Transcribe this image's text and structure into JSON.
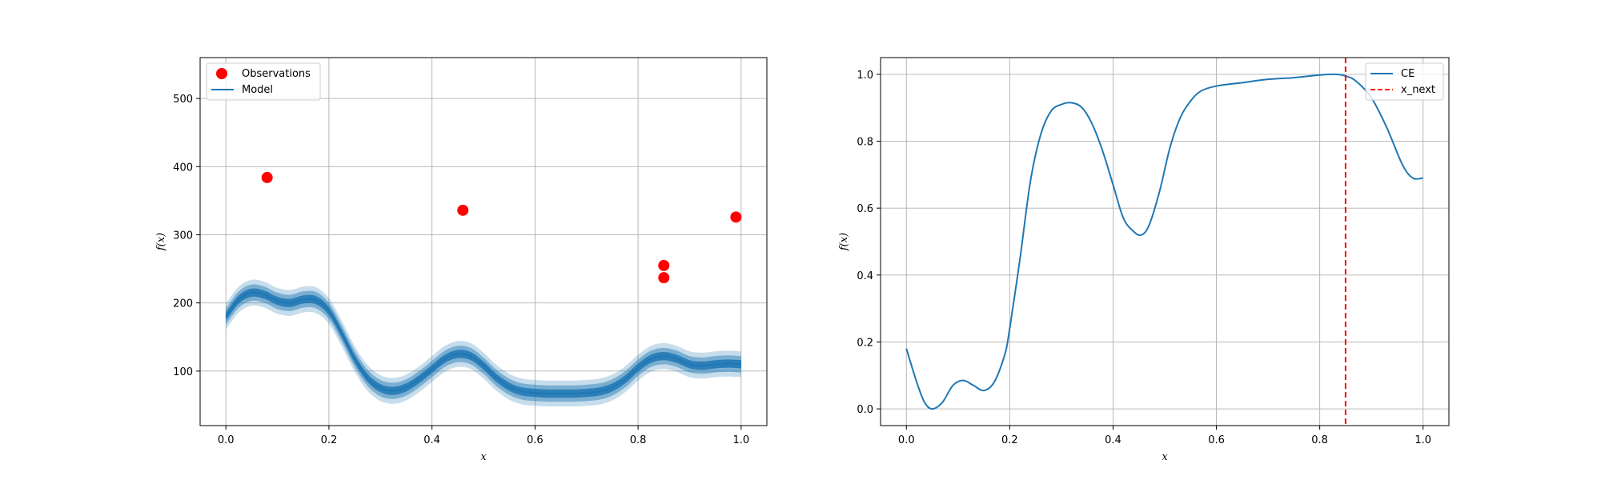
{
  "chart_data": [
    {
      "type": "scatter+line",
      "xlabel": "x",
      "ylabel": "f(x)",
      "xlim": [
        -0.05,
        1.05
      ],
      "ylim": [
        20,
        560
      ],
      "xticks": [
        0.0,
        0.2,
        0.4,
        0.6,
        0.8,
        1.0
      ],
      "xtick_labels": [
        "0.0",
        "0.2",
        "0.4",
        "0.6",
        "0.8",
        "1.0"
      ],
      "yticks": [
        100,
        200,
        300,
        400,
        500
      ],
      "ytick_labels": [
        "100",
        "200",
        "300",
        "400",
        "500"
      ],
      "grid": true,
      "legend": {
        "placement": "upper-left",
        "entries": [
          "Observations",
          "Model"
        ]
      },
      "colors": {
        "observations": "#ff0000",
        "model": "#1f77b4"
      },
      "observations": {
        "name": "Observations",
        "points": [
          {
            "x": 0.08,
            "y": 384
          },
          {
            "x": 0.46,
            "y": 336
          },
          {
            "x": 0.85,
            "y": 255
          },
          {
            "x": 0.85,
            "y": 237
          },
          {
            "x": 0.99,
            "y": 326
          }
        ]
      },
      "model": {
        "name": "Model",
        "x": [
          0.0,
          0.025,
          0.05,
          0.075,
          0.1,
          0.125,
          0.15,
          0.175,
          0.2,
          0.225,
          0.25,
          0.275,
          0.3,
          0.325,
          0.35,
          0.375,
          0.4,
          0.425,
          0.45,
          0.475,
          0.5,
          0.525,
          0.55,
          0.575,
          0.6,
          0.625,
          0.65,
          0.675,
          0.7,
          0.725,
          0.75,
          0.775,
          0.8,
          0.825,
          0.85,
          0.875,
          0.9,
          0.925,
          0.95,
          0.975,
          1.0
        ],
        "mean": [
          180,
          205,
          215,
          212,
          203,
          200,
          205,
          204,
          188,
          155,
          118,
          90,
          75,
          71,
          76,
          88,
          103,
          118,
          125,
          122,
          108,
          90,
          77,
          70,
          68,
          67,
          67,
          67,
          68,
          70,
          76,
          88,
          105,
          118,
          122,
          118,
          110,
          108,
          110,
          111,
          110
        ],
        "bands": [
          {
            "name": "inner",
            "half_width": 6,
            "opacity": 0.85
          },
          {
            "name": "middle",
            "half_width": 12,
            "opacity": 0.45
          },
          {
            "name": "outer",
            "half_width": 19,
            "opacity": 0.25
          }
        ]
      }
    },
    {
      "type": "line",
      "xlabel": "x",
      "ylabel": "f(x)",
      "xlim": [
        -0.05,
        1.05
      ],
      "ylim": [
        -0.05,
        1.05
      ],
      "xticks": [
        0.0,
        0.2,
        0.4,
        0.6,
        0.8,
        1.0
      ],
      "xtick_labels": [
        "0.0",
        "0.2",
        "0.4",
        "0.6",
        "0.8",
        "1.0"
      ],
      "yticks": [
        0.0,
        0.2,
        0.4,
        0.6,
        0.8,
        1.0
      ],
      "ytick_labels": [
        "0.0",
        "0.2",
        "0.4",
        "0.6",
        "0.8",
        "1.0"
      ],
      "grid": true,
      "legend": {
        "placement": "upper-right",
        "entries": [
          "CE",
          "x_next"
        ]
      },
      "colors": {
        "ce": "#1f77b4",
        "x_next": "#ff0000"
      },
      "series": [
        {
          "name": "CE",
          "x": [
            0.0,
            0.02,
            0.035,
            0.05,
            0.07,
            0.09,
            0.11,
            0.13,
            0.15,
            0.17,
            0.19,
            0.2,
            0.22,
            0.24,
            0.26,
            0.28,
            0.3,
            0.32,
            0.34,
            0.36,
            0.38,
            0.4,
            0.42,
            0.44,
            0.455,
            0.47,
            0.49,
            0.51,
            0.53,
            0.55,
            0.57,
            0.6,
            0.65,
            0.7,
            0.75,
            0.8,
            0.83,
            0.85,
            0.87,
            0.9,
            0.93,
            0.96,
            0.98,
            1.0
          ],
          "y": [
            0.18,
            0.08,
            0.02,
            0.0,
            0.02,
            0.07,
            0.085,
            0.07,
            0.055,
            0.08,
            0.16,
            0.24,
            0.45,
            0.68,
            0.82,
            0.89,
            0.91,
            0.915,
            0.9,
            0.85,
            0.77,
            0.67,
            0.57,
            0.53,
            0.52,
            0.55,
            0.65,
            0.78,
            0.87,
            0.92,
            0.95,
            0.965,
            0.975,
            0.985,
            0.99,
            0.998,
            1.0,
            0.995,
            0.98,
            0.93,
            0.84,
            0.73,
            0.69,
            0.69
          ]
        }
      ],
      "x_next": {
        "name": "x_next",
        "x": 0.85
      }
    }
  ]
}
